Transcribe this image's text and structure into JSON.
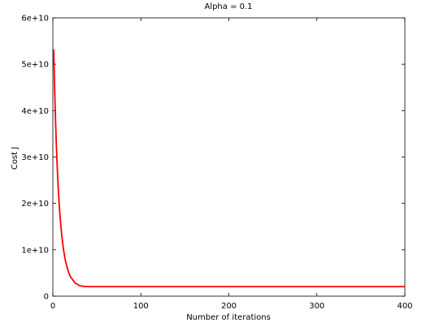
{
  "chart_data": {
    "type": "line",
    "title": "Alpha = 0.1",
    "xlabel": "Number of iterations",
    "ylabel": "Cost J",
    "xlim": [
      0,
      400
    ],
    "ylim": [
      0,
      60000000000
    ],
    "x_ticks": [
      {
        "value": 0,
        "label": "0"
      },
      {
        "value": 100,
        "label": "100"
      },
      {
        "value": 200,
        "label": "200"
      },
      {
        "value": 300,
        "label": "300"
      },
      {
        "value": 400,
        "label": "400"
      }
    ],
    "y_ticks": [
      {
        "value": 0,
        "label": "0"
      },
      {
        "value": 10000000000,
        "label": "1e+10"
      },
      {
        "value": 20000000000,
        "label": "2e+10"
      },
      {
        "value": 30000000000,
        "label": "3e+10"
      },
      {
        "value": 40000000000,
        "label": "4e+10"
      },
      {
        "value": 50000000000,
        "label": "5e+10"
      },
      {
        "value": 60000000000,
        "label": "6e+10"
      }
    ],
    "grid": false,
    "series": [
      {
        "color": "#ff0000",
        "x": [
          1,
          2,
          3,
          4,
          5,
          6,
          7,
          8,
          10,
          12,
          14,
          16,
          18,
          20,
          25,
          30,
          35,
          40,
          50,
          60,
          80,
          100,
          150,
          200,
          250,
          300,
          350,
          400
        ],
        "y": [
          53200000000,
          45000000000,
          38200000000,
          32500000000,
          27800000000,
          23800000000,
          20500000000,
          17600000000,
          13300000000,
          10200000000,
          7900000000,
          6300000000,
          5100000000,
          4200000000,
          2900000000,
          2300000000,
          2100000000,
          2050000000,
          2050000000,
          2050000000,
          2050000000,
          2050000000,
          2050000000,
          2050000000,
          2050000000,
          2050000000,
          2050000000,
          2050000000
        ]
      }
    ]
  }
}
